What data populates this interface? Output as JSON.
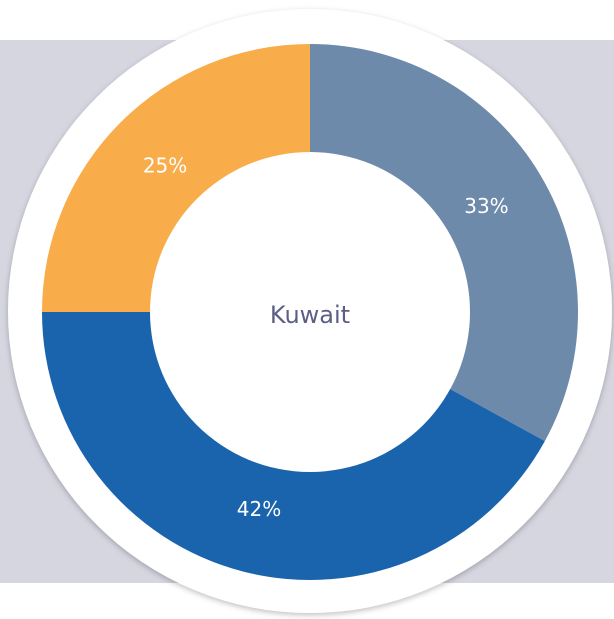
{
  "chart_data": {
    "type": "donut",
    "title": "Kuwait",
    "values": [
      33,
      42,
      25
    ],
    "value_labels": [
      "33%",
      "42%",
      "25%"
    ],
    "colors": [
      "#6e8aab",
      "#1a64ad",
      "#f8ac4a"
    ]
  }
}
